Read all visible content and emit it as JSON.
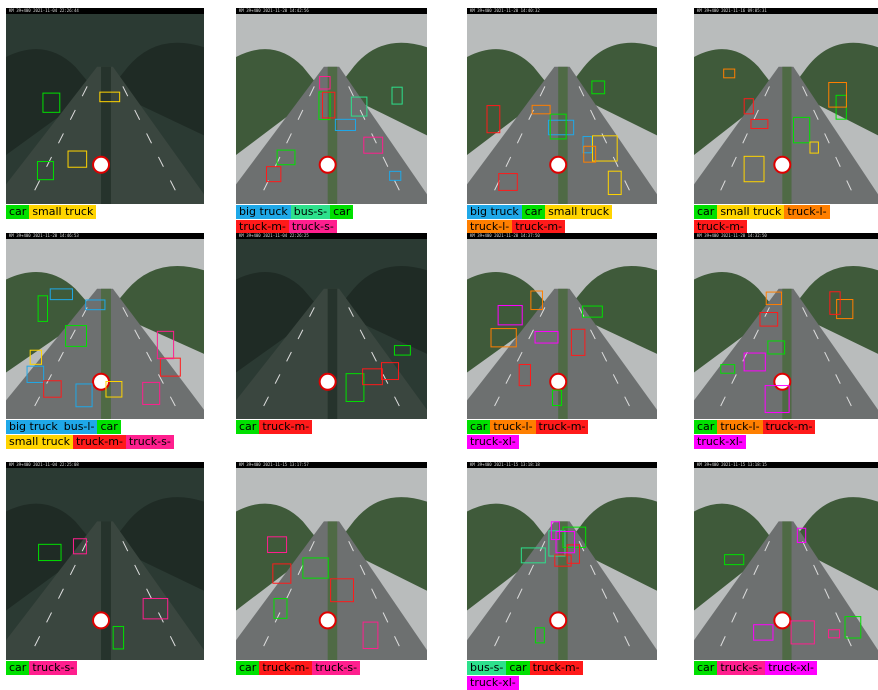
{
  "panels": [
    {
      "timestamp": "KM 39+400 2021-11-04 22:26:44",
      "label_rows": [
        [
          {
            "text": "car",
            "color": "#00e000"
          },
          {
            "text": "small truck",
            "color": "#ffd400"
          }
        ]
      ]
    },
    {
      "timestamp": "KM 39+400 2021-11-20 14:42:56",
      "label_rows": [
        [
          {
            "text": "big truck",
            "color": "#1fa8e8"
          },
          {
            "text": "bus-s-",
            "color": "#2de08c"
          },
          {
            "text": "car",
            "color": "#00e000"
          }
        ],
        [
          {
            "text": "truck-m-",
            "color": "#ff1a1a"
          },
          {
            "text": "truck-s-",
            "color": "#ff1f8e"
          }
        ]
      ]
    },
    {
      "timestamp": "KM 39+400 2021-11-20 14:40:32",
      "label_rows": [
        [
          {
            "text": "big truck",
            "color": "#1fa8e8"
          },
          {
            "text": "car",
            "color": "#00e000"
          },
          {
            "text": "small truck",
            "color": "#ffd400"
          }
        ],
        [
          {
            "text": "truck-l-",
            "color": "#ff7f00"
          },
          {
            "text": "truck-m-",
            "color": "#ff1a1a"
          }
        ]
      ]
    },
    {
      "timestamp": "KM 39+400 2021-11-16 09:05:31",
      "label_rows": [
        [
          {
            "text": "car",
            "color": "#00e000"
          },
          {
            "text": "small truck",
            "color": "#ffd400"
          },
          {
            "text": "truck-l-",
            "color": "#ff7f00"
          }
        ],
        [
          {
            "text": "truck-m-",
            "color": "#ff1a1a"
          }
        ]
      ]
    },
    {
      "timestamp": "KM 39+400 2021-11-20 14:46:53",
      "label_rows": [
        [
          {
            "text": "big truck",
            "color": "#1fa8e8"
          },
          {
            "text": "bus-l-",
            "color": "#1fa8e8"
          },
          {
            "text": "car",
            "color": "#00e000"
          }
        ],
        [
          {
            "text": "small truck",
            "color": "#ffd400"
          },
          {
            "text": "truck-m-",
            "color": "#ff1a1a"
          },
          {
            "text": "truck-s-",
            "color": "#ff1f8e"
          }
        ]
      ]
    },
    {
      "timestamp": "KM 39+400 2021-11-04 22:26:25",
      "label_rows": [
        [
          {
            "text": "car",
            "color": "#00e000"
          },
          {
            "text": "truck-m-",
            "color": "#ff1a1a"
          }
        ]
      ]
    },
    {
      "timestamp": "KM 39+400 2021-11-20 14:37:50",
      "label_rows": [
        [
          {
            "text": "car",
            "color": "#00e000"
          },
          {
            "text": "truck-l-",
            "color": "#ff7f00"
          },
          {
            "text": "truck-m-",
            "color": "#ff1a1a"
          }
        ],
        [
          {
            "text": "truck-xl-",
            "color": "#ff00ff"
          }
        ]
      ]
    },
    {
      "timestamp": "KM 39+400 2021-11-20 14:32:50",
      "label_rows": [
        [
          {
            "text": "car",
            "color": "#00e000"
          },
          {
            "text": "truck-l-",
            "color": "#ff7f00"
          },
          {
            "text": "truck-m-",
            "color": "#ff1a1a"
          }
        ],
        [
          {
            "text": "truck-xl-",
            "color": "#ff00ff"
          }
        ]
      ]
    },
    {
      "timestamp": "KM 39+400 2021-11-04 22:25:08",
      "label_rows": [
        [
          {
            "text": "car",
            "color": "#00e000"
          },
          {
            "text": "truck-s-",
            "color": "#ff1f8e"
          }
        ]
      ]
    },
    {
      "timestamp": "KM 39+400 2021-11-15 13:17:57",
      "label_rows": [
        [
          {
            "text": "car",
            "color": "#00e000"
          },
          {
            "text": "truck-m-",
            "color": "#ff1a1a"
          },
          {
            "text": "truck-s-",
            "color": "#ff1f8e"
          }
        ]
      ]
    },
    {
      "timestamp": "KM 39+400 2021-11-15 13:18:18",
      "label_rows": [
        [
          {
            "text": "bus-s-",
            "color": "#2de08c"
          },
          {
            "text": "car",
            "color": "#00e000"
          },
          {
            "text": "truck-m-",
            "color": "#ff1a1a"
          }
        ],
        [
          {
            "text": "truck-xl-",
            "color": "#ff00ff"
          }
        ]
      ]
    },
    {
      "timestamp": "KM 39+400 2021-11-15 13:18:15",
      "label_rows": [
        [
          {
            "text": "car",
            "color": "#00e000"
          },
          {
            "text": "truck-s-",
            "color": "#ff1f8e"
          },
          {
            "text": "truck-xl-",
            "color": "#ff00ff"
          }
        ]
      ]
    }
  ]
}
